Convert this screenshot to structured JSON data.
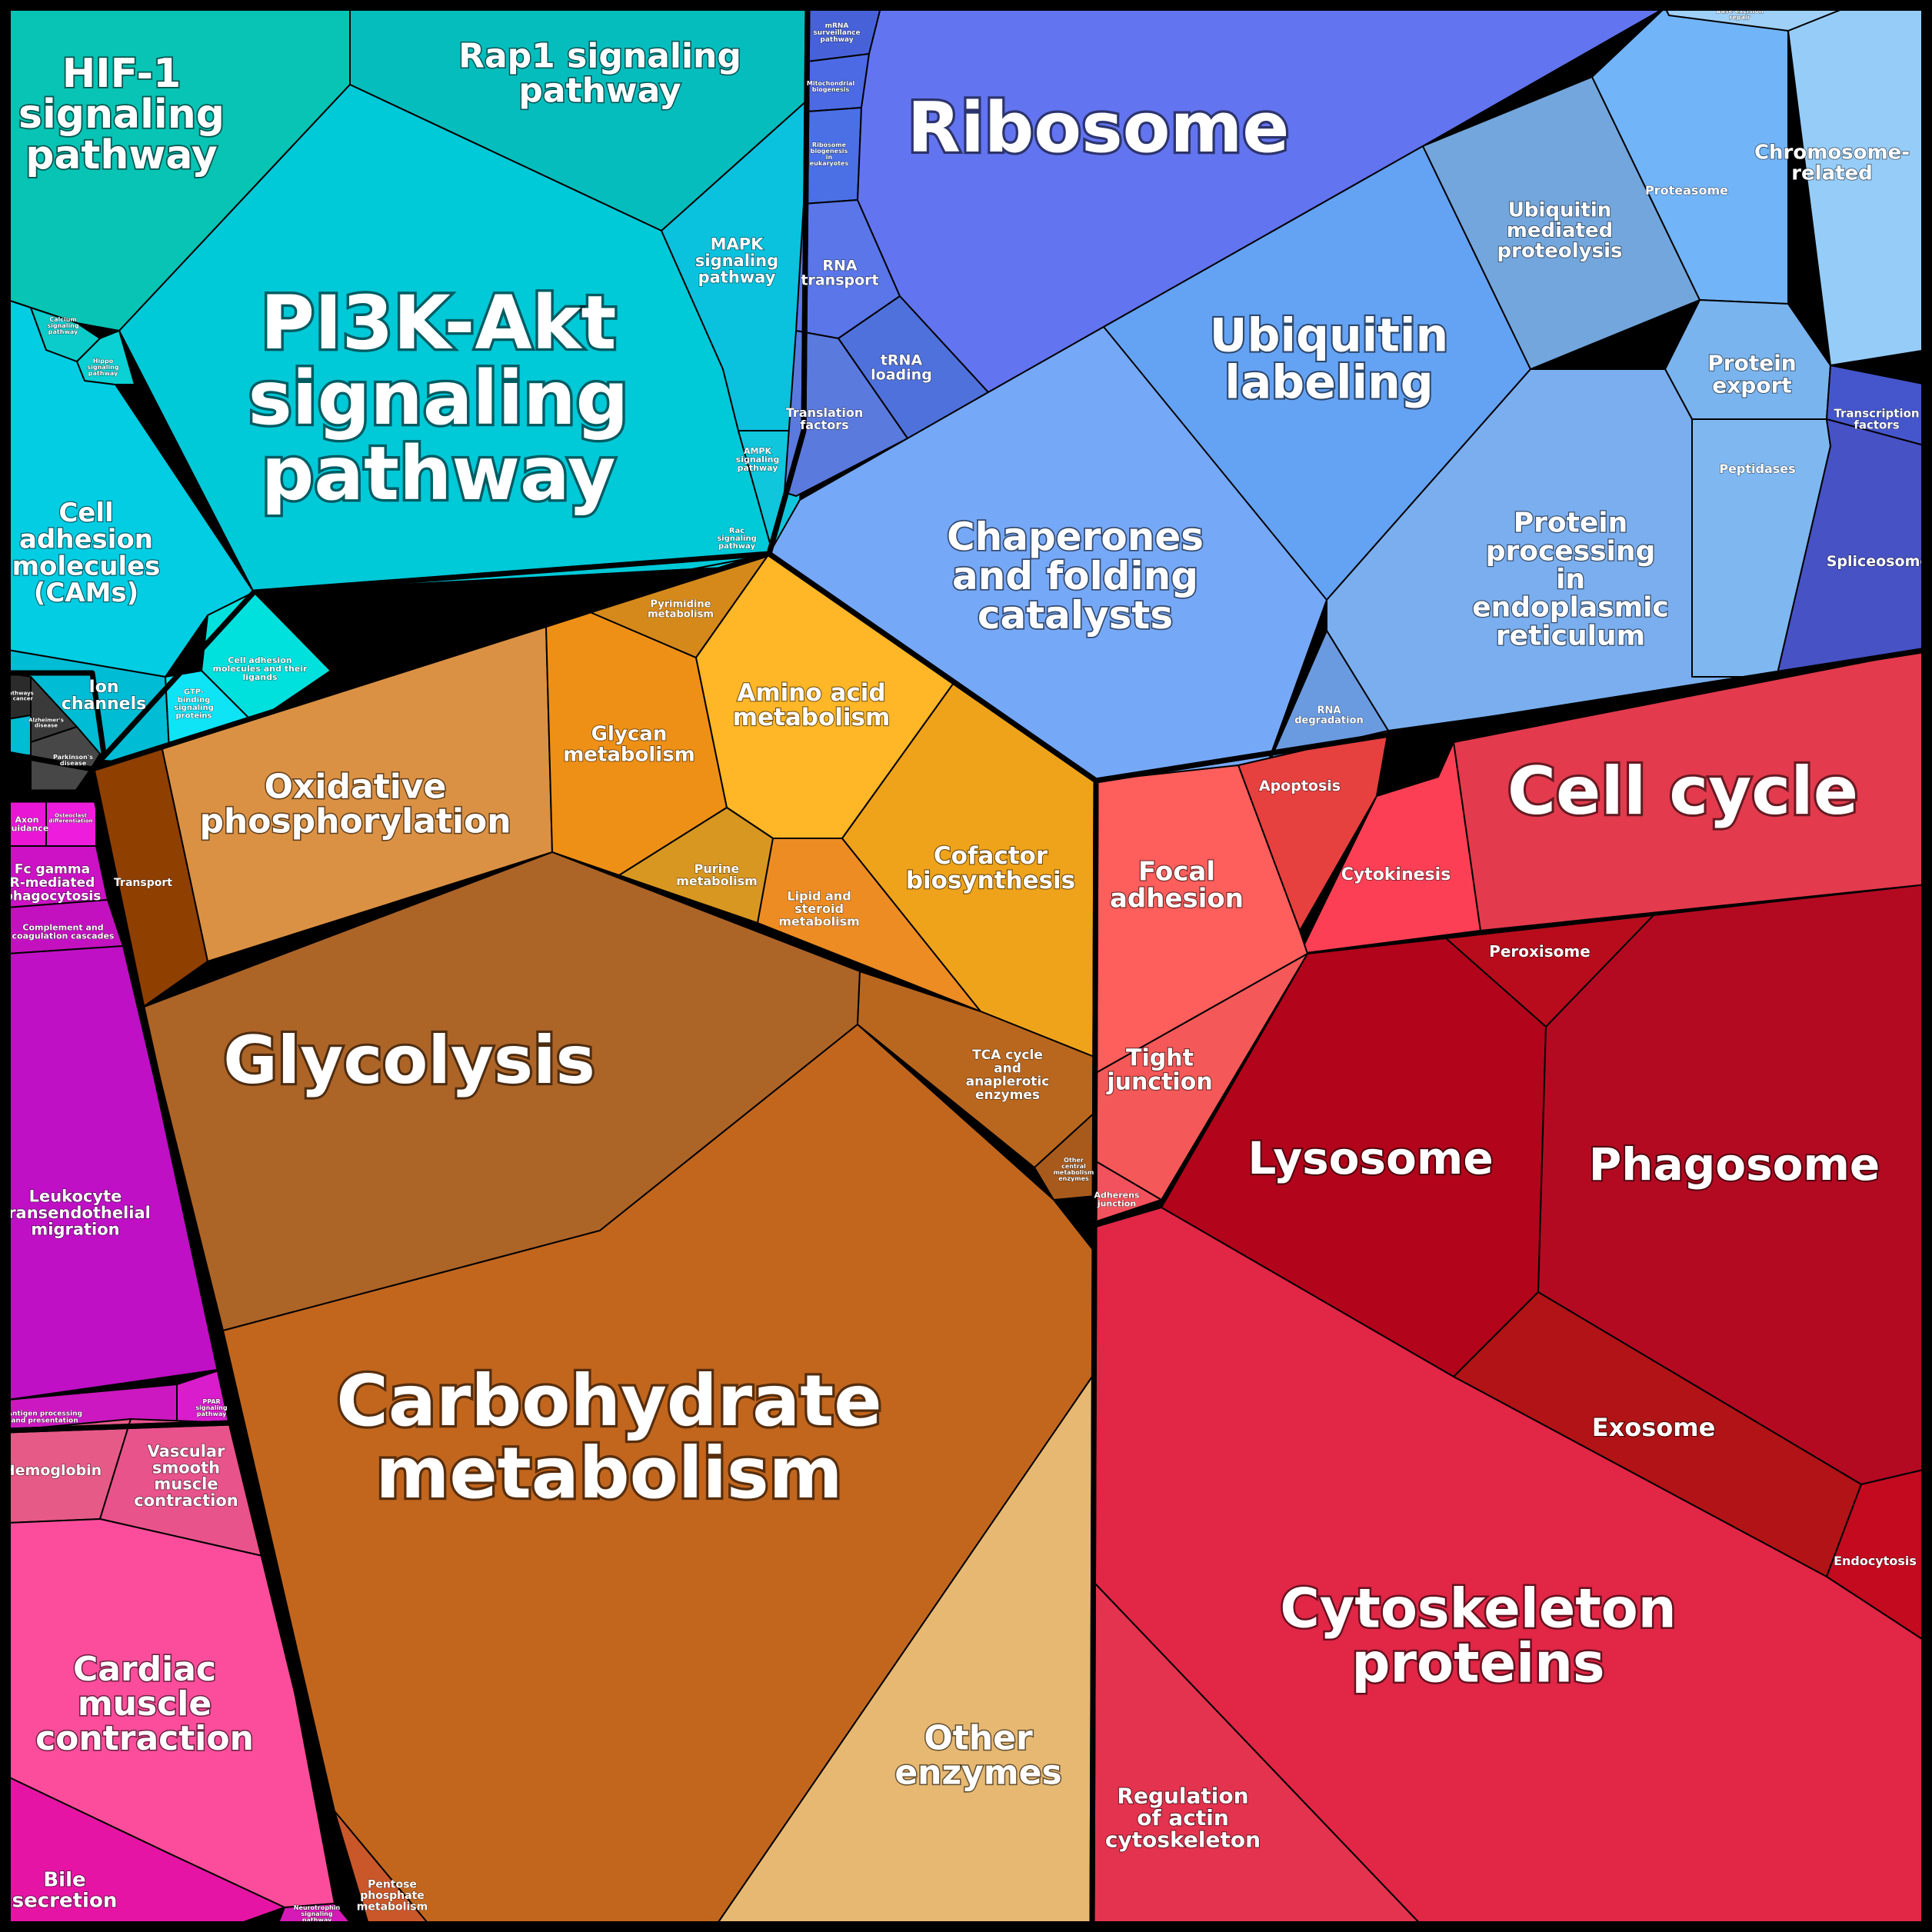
{
  "groups": [
    {
      "name": "signaling",
      "cells": [
        {
          "id": "hif1",
          "label": [
            "HIF-1",
            "signaling",
            "pathway"
          ],
          "color": "#08c4b4"
        },
        {
          "id": "rap1",
          "label": [
            "Rap1 signaling",
            "pathway"
          ],
          "color": "#06bdbd"
        },
        {
          "id": "pi3k",
          "label": [
            "PI3K-Akt",
            "signaling",
            "pathway"
          ],
          "color": "#00c9d8"
        },
        {
          "id": "mapk",
          "label": [
            "MAPK",
            "signaling",
            "pathway"
          ],
          "color": "#0ac2de"
        },
        {
          "id": "cams",
          "label": [
            "Cell",
            "adhesion",
            "molecules",
            "(CAMs)"
          ],
          "color": "#02cde3"
        },
        {
          "id": "ion",
          "label": [
            "Ion",
            "channels"
          ],
          "color": "#00bcd4"
        },
        {
          "id": "cell-adhesion-ligands",
          "label": [
            "Cell adhesion",
            "molecules and their",
            "ligands"
          ],
          "color": "#00e1de"
        },
        {
          "id": "gtp",
          "label": [
            "GTP-",
            "binding",
            "signaling",
            "proteins"
          ],
          "color": "#0fe3f6"
        },
        {
          "id": "calcium",
          "label": [
            "Calcium",
            "signaling",
            "pathway"
          ],
          "color": "#0ccbcb"
        },
        {
          "id": "hippo",
          "label": [
            "Hippo",
            "signaling",
            "pathway"
          ],
          "color": "#0bd0d4"
        },
        {
          "id": "ampk",
          "label": [
            "AMPK",
            "signaling",
            "pathway"
          ],
          "color": "#10c6dc"
        },
        {
          "id": "rac",
          "label": [
            "Rac",
            "signaling",
            "pathway"
          ],
          "color": "#07d2e2"
        }
      ]
    },
    {
      "name": "neuro",
      "cells": [
        {
          "id": "pathways-cancer",
          "label": [
            "Pathways",
            "in cancer"
          ],
          "color": "#2b2b2b"
        },
        {
          "id": "alzheimer",
          "label": [
            "Alzheimer's",
            "disease"
          ],
          "color": "#3a3a3a"
        },
        {
          "id": "parkinson",
          "label": [
            "Parkinson's",
            "disease"
          ],
          "color": "#474747"
        }
      ]
    },
    {
      "name": "immune",
      "cells": [
        {
          "id": "axon",
          "label": [
            "Axon",
            "guidance"
          ],
          "color": "#e916d6"
        },
        {
          "id": "osteoclast",
          "label": [
            "Osteoclast",
            "differentiation"
          ],
          "color": "#ee1cdc"
        },
        {
          "id": "fc-gamma",
          "label": [
            "Fc gamma",
            "R-mediated",
            "phagocytosis"
          ],
          "color": "#cc12c4"
        },
        {
          "id": "complement",
          "label": [
            "Complement and",
            "coagulation cascades"
          ],
          "color": "#c311bf"
        },
        {
          "id": "leukocyte",
          "label": [
            "Leukocyte",
            "transendothelial",
            "migration"
          ],
          "color": "#c010c6"
        },
        {
          "id": "antigen",
          "label": [
            "Antigen processing",
            "and presentation"
          ],
          "color": "#cc18c0"
        },
        {
          "id": "ppar",
          "label": [
            "PPAR",
            "signaling",
            "pathway"
          ],
          "color": "#d91ccc"
        }
      ]
    },
    {
      "name": "muscle",
      "cells": [
        {
          "id": "hemoglobin",
          "label": [
            "Hemoglobin"
          ],
          "color": "#e65a88"
        },
        {
          "id": "vascular",
          "label": [
            "Vascular",
            "smooth",
            "muscle",
            "contraction"
          ],
          "color": "#e8538c"
        },
        {
          "id": "cardiac",
          "label": [
            "Cardiac",
            "muscle",
            "contraction"
          ],
          "color": "#fb4d9b"
        },
        {
          "id": "bile",
          "label": [
            "Bile",
            "secretion"
          ],
          "color": "#e614a4"
        },
        {
          "id": "neurotrophin",
          "label": [
            "Neurotrophin",
            "signaling",
            "pathway"
          ],
          "color": "#d61ab8"
        }
      ]
    },
    {
      "name": "metabolism",
      "cells": [
        {
          "id": "oxphos",
          "label": [
            "Oxidative",
            "phosphorylation"
          ],
          "color": "#db9143"
        },
        {
          "id": "transport",
          "label": [
            "Transport"
          ],
          "color": "#8f3f00"
        },
        {
          "id": "glycan",
          "label": [
            "Glycan",
            "metabolism"
          ],
          "color": "#ee9016"
        },
        {
          "id": "pyrimidine",
          "label": [
            "Pyrimidine",
            "metabolism"
          ],
          "color": "#d4891a"
        },
        {
          "id": "amino",
          "label": [
            "Amino acid",
            "metabolism"
          ],
          "color": "#ffb627"
        },
        {
          "id": "purine",
          "label": [
            "Purine",
            "metabolism"
          ],
          "color": "#d79720"
        },
        {
          "id": "lipid",
          "label": [
            "Lipid and",
            "steroid",
            "metabolism"
          ],
          "color": "#ec8c23"
        },
        {
          "id": "cofactor",
          "label": [
            "Cofactor",
            "biosynthesis"
          ],
          "color": "#efa31b"
        },
        {
          "id": "glycolysis",
          "label": [
            "Glycolysis"
          ],
          "color": "#ad6427"
        },
        {
          "id": "tca",
          "label": [
            "TCA cycle",
            "and",
            "anaplerotic",
            "enzymes"
          ],
          "color": "#b9671f"
        },
        {
          "id": "other-central",
          "label": [
            "Other",
            "central",
            "metabolism",
            "enzymes"
          ],
          "color": "#a85a1c"
        },
        {
          "id": "carbohydrate",
          "label": [
            "Carbohydrate",
            "metabolism"
          ],
          "color": "#c2661e"
        },
        {
          "id": "other-enzymes",
          "label": [
            "Other",
            "enzymes"
          ],
          "color": "#e6b872"
        },
        {
          "id": "pentose",
          "label": [
            "Pentose",
            "phosphate",
            "metabolism"
          ],
          "color": "#c9572a"
        }
      ]
    },
    {
      "name": "genetic-information",
      "cells": [
        {
          "id": "mrna",
          "label": [
            "mRNA",
            "surveillance",
            "pathway"
          ],
          "color": "#4762d9"
        },
        {
          "id": "mito-bio",
          "label": [
            "Mitochondrial",
            "biogenesis"
          ],
          "color": "#4c6ae3"
        },
        {
          "id": "ribo-bio",
          "label": [
            "Ribosome",
            "biogenesis",
            "in",
            "eukaryotes"
          ],
          "color": "#4b70e6"
        },
        {
          "id": "rna-transport",
          "label": [
            "RNA",
            "transport"
          ],
          "color": "#5a76e8"
        },
        {
          "id": "trna",
          "label": [
            "tRNA",
            "loading"
          ],
          "color": "#4f71dc"
        },
        {
          "id": "translation",
          "label": [
            "Translation",
            "factors"
          ],
          "color": "#5b7ade"
        },
        {
          "id": "ribosome",
          "label": [
            "Ribosome"
          ],
          "color": "#6374f0"
        },
        {
          "id": "ubiquitin-labeling",
          "label": [
            "Ubiquitin",
            "labeling"
          ],
          "color": "#64a2f4"
        },
        {
          "id": "chaperones",
          "label": [
            "Chaperones",
            "and folding",
            "catalysts"
          ],
          "color": "#76a8f8"
        },
        {
          "id": "ubiquitin-mediated",
          "label": [
            "Ubiquitin",
            "mediated",
            "proteolysis"
          ],
          "color": "#73a6dc"
        },
        {
          "id": "proteasome",
          "label": [
            "Proteasome"
          ],
          "color": "#72b4f8"
        },
        {
          "id": "chromosome",
          "label": [
            "Chromosome-",
            "related"
          ],
          "color": "#96ccf8"
        },
        {
          "id": "protein-export",
          "label": [
            "Protein",
            "export"
          ],
          "color": "#7ab4ee"
        },
        {
          "id": "peptidases",
          "label": [
            "Peptidases"
          ],
          "color": "#7fb7f0"
        },
        {
          "id": "protein-processing",
          "label": [
            "Protein",
            "processing",
            "in",
            "endoplasmic",
            "reticulum"
          ],
          "color": "#7aaeee"
        },
        {
          "id": "rna-degradation",
          "label": [
            "RNA",
            "degradation"
          ],
          "color": "#6a9ae0"
        },
        {
          "id": "transcription",
          "label": [
            "Transcription",
            "factors"
          ],
          "color": "#4556cc"
        },
        {
          "id": "spliceosome",
          "label": [
            "Spliceosome"
          ],
          "color": "#4752c4"
        },
        {
          "id": "dna-rep",
          "label": [
            "Base excision",
            "repair"
          ],
          "color": "#9fd0f8"
        }
      ]
    },
    {
      "name": "cellular-processes",
      "cells": [
        {
          "id": "apoptosis",
          "label": [
            "Apoptosis"
          ],
          "color": "#e6403f"
        },
        {
          "id": "cytokinesis",
          "label": [
            "Cytokinesis"
          ],
          "color": "#fc3f54"
        },
        {
          "id": "cell-cycle",
          "label": [
            "Cell cycle"
          ],
          "color": "#e33a4d"
        },
        {
          "id": "focal",
          "label": [
            "Focal",
            "adhesion"
          ],
          "color": "#fe5e5c"
        },
        {
          "id": "tight",
          "label": [
            "Tight",
            "junction"
          ],
          "color": "#f55858"
        },
        {
          "id": "adherens",
          "label": [
            "Adherens",
            "junction"
          ],
          "color": "#f2525d"
        },
        {
          "id": "peroxisome",
          "label": [
            "Peroxisome"
          ],
          "color": "#b80c1c"
        },
        {
          "id": "lysosome",
          "label": [
            "Lysosome"
          ],
          "color": "#b2041b"
        },
        {
          "id": "phagosome",
          "label": [
            "Phagosome"
          ],
          "color": "#b30a22"
        },
        {
          "id": "exosome",
          "label": [
            "Exosome"
          ],
          "color": "#b11316"
        },
        {
          "id": "endocytosis",
          "label": [
            "Endocytosis"
          ],
          "color": "#c30a1f"
        },
        {
          "id": "cytoskeleton",
          "label": [
            "Cytoskeleton",
            "proteins"
          ],
          "color": "#e12646"
        },
        {
          "id": "actin",
          "label": [
            "Regulation",
            "of actin",
            "cytoskeleton"
          ],
          "color": "#e3334e"
        }
      ]
    }
  ]
}
